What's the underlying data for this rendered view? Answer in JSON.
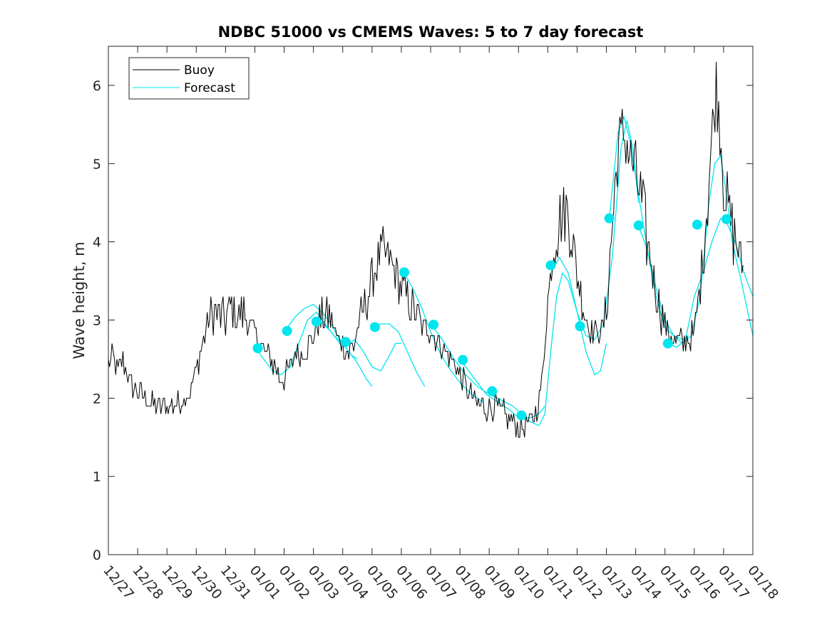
{
  "chart_data": {
    "type": "line",
    "title": "NDBC 51000 vs CMEMS Waves: 5 to 7 day forecast",
    "xlabel": "",
    "ylabel": "Wave height, m",
    "xlim": [
      0,
      22
    ],
    "ylim": [
      0,
      6.5
    ],
    "grid": false,
    "legend_position": "top-left",
    "x_tick_labels": [
      "12/27",
      "12/28",
      "12/29",
      "12/30",
      "12/31",
      "01/01",
      "01/02",
      "01/03",
      "01/04",
      "01/05",
      "01/06",
      "01/07",
      "01/08",
      "01/09",
      "01/10",
      "01/11",
      "01/12",
      "01/13",
      "01/14",
      "01/15",
      "01/16",
      "01/17",
      "01/18"
    ],
    "y_ticks": [
      0,
      1,
      2,
      3,
      4,
      5,
      6
    ],
    "series": [
      {
        "name": "Buoy",
        "color": "#000000",
        "x_unit": "days since 12/27",
        "points": [
          [
            0,
            2.45
          ],
          [
            0.15,
            2.55
          ],
          [
            0.3,
            2.35
          ],
          [
            0.5,
            2.5
          ],
          [
            0.7,
            2.25
          ],
          [
            0.85,
            2.15
          ],
          [
            1.0,
            2.1
          ],
          [
            1.2,
            2.0
          ],
          [
            1.4,
            1.95
          ],
          [
            1.6,
            1.93
          ],
          [
            1.8,
            1.9
          ],
          [
            2.0,
            1.88
          ],
          [
            2.2,
            1.9
          ],
          [
            2.4,
            1.95
          ],
          [
            2.6,
            2.0
          ],
          [
            2.8,
            2.1
          ],
          [
            3.0,
            2.35
          ],
          [
            3.2,
            2.7
          ],
          [
            3.4,
            2.95
          ],
          [
            3.6,
            3.1
          ],
          [
            3.8,
            3.05
          ],
          [
            4.0,
            3.0
          ],
          [
            4.2,
            3.15
          ],
          [
            4.4,
            3.05
          ],
          [
            4.6,
            3.1
          ],
          [
            4.8,
            3.0
          ],
          [
            5.0,
            2.85
          ],
          [
            5.2,
            2.65
          ],
          [
            5.4,
            2.55
          ],
          [
            5.6,
            2.45
          ],
          [
            5.8,
            2.3
          ],
          [
            6.0,
            2.25
          ],
          [
            6.2,
            2.4
          ],
          [
            6.4,
            2.6
          ],
          [
            6.6,
            2.55
          ],
          [
            6.8,
            2.65
          ],
          [
            7.0,
            2.8
          ],
          [
            7.2,
            3.0
          ],
          [
            7.4,
            3.1
          ],
          [
            7.6,
            3.0
          ],
          [
            7.8,
            2.8
          ],
          [
            8.0,
            2.7
          ],
          [
            8.2,
            2.55
          ],
          [
            8.4,
            2.7
          ],
          [
            8.6,
            3.0
          ],
          [
            8.8,
            3.25
          ],
          [
            9.0,
            3.5
          ],
          [
            9.2,
            3.75
          ],
          [
            9.4,
            3.9
          ],
          [
            9.6,
            3.75
          ],
          [
            9.8,
            3.6
          ],
          [
            10.0,
            3.4
          ],
          [
            10.2,
            3.3
          ],
          [
            10.4,
            3.15
          ],
          [
            10.6,
            3.0
          ],
          [
            10.8,
            2.9
          ],
          [
            11.0,
            2.85
          ],
          [
            11.2,
            2.75
          ],
          [
            11.4,
            2.65
          ],
          [
            11.6,
            2.55
          ],
          [
            11.8,
            2.45
          ],
          [
            12.0,
            2.3
          ],
          [
            12.2,
            2.15
          ],
          [
            12.4,
            2.0
          ],
          [
            12.6,
            1.95
          ],
          [
            12.8,
            1.9
          ],
          [
            13.0,
            1.85
          ],
          [
            13.2,
            1.9
          ],
          [
            13.4,
            1.85
          ],
          [
            13.6,
            1.75
          ],
          [
            13.8,
            1.7
          ],
          [
            14.0,
            1.65
          ],
          [
            14.2,
            1.65
          ],
          [
            14.4,
            1.7
          ],
          [
            14.6,
            1.8
          ],
          [
            14.8,
            2.2
          ],
          [
            15.0,
            3.2
          ],
          [
            15.2,
            4.0
          ],
          [
            15.4,
            4.3
          ],
          [
            15.6,
            4.4
          ],
          [
            15.8,
            4.2
          ],
          [
            16.0,
            3.6
          ],
          [
            16.2,
            3.2
          ],
          [
            16.4,
            2.9
          ],
          [
            16.6,
            2.85
          ],
          [
            16.8,
            2.85
          ],
          [
            17.0,
            3.1
          ],
          [
            17.2,
            4.2
          ],
          [
            17.4,
            5.2
          ],
          [
            17.6,
            5.4
          ],
          [
            17.8,
            5.1
          ],
          [
            18.0,
            4.9
          ],
          [
            18.2,
            4.5
          ],
          [
            18.4,
            4.0
          ],
          [
            18.6,
            3.6
          ],
          [
            18.8,
            3.2
          ],
          [
            19.0,
            2.95
          ],
          [
            19.2,
            2.8
          ],
          [
            19.4,
            2.75
          ],
          [
            19.6,
            2.7
          ],
          [
            19.8,
            2.75
          ],
          [
            20.0,
            2.85
          ],
          [
            20.2,
            3.4
          ],
          [
            20.4,
            4.3
          ],
          [
            20.6,
            5.3
          ],
          [
            20.75,
            6.0
          ],
          [
            20.9,
            5.4
          ],
          [
            21.0,
            4.8
          ],
          [
            21.2,
            4.3
          ],
          [
            21.4,
            4.0
          ],
          [
            21.6,
            3.8
          ],
          [
            21.7,
            3.6
          ]
        ]
      },
      {
        "name": "Forecast",
        "color": "#00e5ee",
        "x_unit": "days since 12/27",
        "segments": [
          [
            [
              5.0,
              2.65
            ],
            [
              5.3,
              2.5
            ],
            [
              5.6,
              2.35
            ],
            [
              5.9,
              2.3
            ],
            [
              6.2,
              2.4
            ],
            [
              6.5,
              2.7
            ],
            [
              6.8,
              3.0
            ],
            [
              7.1,
              3.1
            ],
            [
              7.4,
              2.95
            ],
            [
              7.7,
              2.8
            ],
            [
              8.0,
              2.7
            ],
            [
              8.3,
              2.55
            ],
            [
              8.5,
              2.5
            ]
          ],
          [
            [
              6.0,
              2.85
            ],
            [
              6.4,
              3.05
            ],
            [
              6.7,
              3.15
            ],
            [
              7.0,
              3.2
            ],
            [
              7.3,
              3.1
            ],
            [
              7.6,
              2.95
            ],
            [
              7.9,
              2.75
            ],
            [
              8.2,
              2.6
            ],
            [
              8.5,
              2.45
            ],
            [
              8.8,
              2.25
            ],
            [
              9.0,
              2.15
            ]
          ],
          [
            [
              7.2,
              3.0
            ],
            [
              7.6,
              2.85
            ],
            [
              7.9,
              2.7
            ],
            [
              8.1,
              2.65
            ],
            [
              8.4,
              2.75
            ],
            [
              8.7,
              2.6
            ],
            [
              9.0,
              2.4
            ],
            [
              9.3,
              2.35
            ],
            [
              9.6,
              2.55
            ],
            [
              9.8,
              2.7
            ],
            [
              10.0,
              2.7
            ]
          ],
          [
            [
              9.0,
              2.9
            ],
            [
              9.3,
              2.95
            ],
            [
              9.6,
              2.95
            ],
            [
              9.9,
              2.85
            ],
            [
              10.2,
              2.6
            ],
            [
              10.5,
              2.35
            ],
            [
              10.8,
              2.15
            ]
          ],
          [
            [
              10.1,
              3.6
            ],
            [
              10.4,
              3.4
            ],
            [
              10.7,
              3.15
            ],
            [
              11.0,
              2.85
            ],
            [
              11.3,
              2.6
            ],
            [
              11.6,
              2.4
            ],
            [
              12.0,
              2.2
            ],
            [
              12.4,
              2.05
            ],
            [
              12.8,
              1.95
            ]
          ],
          [
            [
              11.0,
              2.95
            ],
            [
              11.4,
              2.75
            ],
            [
              11.8,
              2.5
            ],
            [
              12.2,
              2.3
            ],
            [
              12.6,
              2.15
            ],
            [
              13.0,
              2.05
            ],
            [
              13.4,
              1.98
            ],
            [
              13.8,
              1.9
            ],
            [
              14.1,
              1.8
            ]
          ],
          [
            [
              12.1,
              2.45
            ],
            [
              12.5,
              2.25
            ],
            [
              12.9,
              2.05
            ],
            [
              13.3,
              1.95
            ],
            [
              13.7,
              1.85
            ],
            [
              14.0,
              1.75
            ],
            [
              14.4,
              1.75
            ],
            [
              14.7,
              1.8
            ],
            [
              14.9,
              1.9
            ]
          ],
          [
            [
              14.1,
              1.78
            ],
            [
              14.4,
              1.7
            ],
            [
              14.7,
              1.65
            ],
            [
              14.9,
              1.8
            ],
            [
              15.1,
              2.6
            ],
            [
              15.3,
              3.3
            ],
            [
              15.5,
              3.6
            ],
            [
              15.7,
              3.5
            ],
            [
              16.0,
              3.1
            ],
            [
              16.3,
              2.6
            ],
            [
              16.6,
              2.3
            ],
            [
              16.8,
              2.35
            ],
            [
              17.0,
              2.7
            ]
          ],
          [
            [
              15.1,
              3.6
            ],
            [
              15.4,
              3.8
            ],
            [
              15.7,
              3.6
            ],
            [
              16.0,
              3.1
            ],
            [
              16.3,
              2.8
            ],
            [
              16.6,
              2.75
            ],
            [
              16.9,
              2.95
            ],
            [
              17.2,
              3.8
            ],
            [
              17.5,
              5.2
            ],
            [
              17.7,
              5.55
            ],
            [
              17.9,
              5.2
            ],
            [
              18.1,
              4.5
            ]
          ],
          [
            [
              17.1,
              4.3
            ],
            [
              17.4,
              5.4
            ],
            [
              17.6,
              5.6
            ],
            [
              17.8,
              5.3
            ],
            [
              18.1,
              4.6
            ],
            [
              18.4,
              3.9
            ],
            [
              18.7,
              3.3
            ],
            [
              19.0,
              2.9
            ],
            [
              19.3,
              2.8
            ],
            [
              19.6,
              2.75
            ],
            [
              19.8,
              2.8
            ]
          ],
          [
            [
              18.1,
              4.2
            ],
            [
              18.4,
              3.9
            ],
            [
              18.7,
              3.4
            ],
            [
              19.0,
              3.0
            ],
            [
              19.3,
              2.8
            ],
            [
              19.6,
              2.7
            ],
            [
              19.9,
              2.8
            ],
            [
              20.2,
              3.3
            ],
            [
              20.5,
              4.5
            ],
            [
              20.7,
              5.0
            ],
            [
              20.9,
              5.1
            ],
            [
              21.1,
              4.6
            ],
            [
              21.3,
              4.0
            ],
            [
              21.6,
              3.5
            ],
            [
              22.0,
              2.8
            ]
          ],
          [
            [
              19.1,
              2.7
            ],
            [
              19.4,
              2.65
            ],
            [
              19.7,
              2.75
            ],
            [
              20.0,
              3.3
            ],
            [
              20.3,
              3.6
            ],
            [
              20.6,
              4.0
            ],
            [
              20.9,
              4.3
            ],
            [
              21.1,
              4.25
            ],
            [
              21.4,
              4.0
            ],
            [
              21.7,
              3.6
            ],
            [
              22.0,
              3.3
            ]
          ]
        ],
        "markers": [
          [
            5.1,
            2.64
          ],
          [
            6.1,
            2.86
          ],
          [
            7.1,
            2.98
          ],
          [
            8.1,
            2.72
          ],
          [
            9.1,
            2.91
          ],
          [
            10.1,
            3.61
          ],
          [
            11.1,
            2.94
          ],
          [
            12.1,
            2.49
          ],
          [
            13.1,
            2.09
          ],
          [
            14.1,
            1.78
          ],
          [
            15.1,
            3.7
          ],
          [
            16.1,
            2.92
          ],
          [
            17.1,
            4.3
          ],
          [
            18.1,
            4.21
          ],
          [
            19.1,
            2.7
          ],
          [
            20.1,
            4.22
          ],
          [
            21.1,
            4.29
          ]
        ]
      }
    ]
  }
}
